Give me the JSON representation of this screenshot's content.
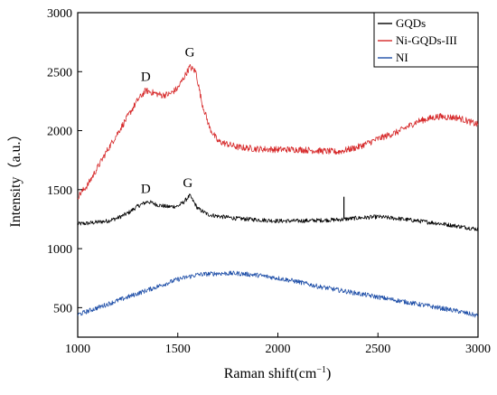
{
  "chart_data": {
    "type": "line",
    "xlabel": "Raman shift(cm",
    "xlabel_sup": "−1",
    "xlabel_suffix": ")",
    "ylabel": "Intensity（a.u.）",
    "xlim": [
      1000,
      3000
    ],
    "ylim": [
      250,
      3000
    ],
    "xticks": [
      1000,
      1500,
      2000,
      2500,
      3000
    ],
    "yticks": [
      500,
      1000,
      1500,
      2000,
      2500,
      3000
    ],
    "grid": false,
    "legend_position": "top-right",
    "series": [
      {
        "name": "GQDs",
        "color": "#000000",
        "points": [
          [
            1000,
            1210
          ],
          [
            1050,
            1215
          ],
          [
            1100,
            1225
          ],
          [
            1150,
            1235
          ],
          [
            1200,
            1260
          ],
          [
            1250,
            1300
          ],
          [
            1300,
            1360
          ],
          [
            1350,
            1400
          ],
          [
            1400,
            1370
          ],
          [
            1450,
            1355
          ],
          [
            1500,
            1360
          ],
          [
            1530,
            1395
          ],
          [
            1560,
            1450
          ],
          [
            1600,
            1340
          ],
          [
            1650,
            1290
          ],
          [
            1700,
            1275
          ],
          [
            1800,
            1255
          ],
          [
            1900,
            1245
          ],
          [
            2000,
            1235
          ],
          [
            2100,
            1235
          ],
          [
            2200,
            1240
          ],
          [
            2300,
            1245
          ],
          [
            2400,
            1260
          ],
          [
            2500,
            1270
          ],
          [
            2600,
            1255
          ],
          [
            2700,
            1235
          ],
          [
            2800,
            1215
          ],
          [
            2900,
            1190
          ],
          [
            3000,
            1165
          ]
        ]
      },
      {
        "name": "Ni-GQDs-III",
        "color": "#d62728",
        "points": [
          [
            1000,
            1440
          ],
          [
            1050,
            1540
          ],
          [
            1100,
            1690
          ],
          [
            1150,
            1840
          ],
          [
            1200,
            1980
          ],
          [
            1250,
            2120
          ],
          [
            1300,
            2260
          ],
          [
            1340,
            2340
          ],
          [
            1380,
            2320
          ],
          [
            1420,
            2300
          ],
          [
            1460,
            2310
          ],
          [
            1500,
            2360
          ],
          [
            1530,
            2450
          ],
          [
            1560,
            2540
          ],
          [
            1590,
            2500
          ],
          [
            1620,
            2240
          ],
          [
            1660,
            2020
          ],
          [
            1700,
            1910
          ],
          [
            1800,
            1860
          ],
          [
            1900,
            1845
          ],
          [
            2000,
            1840
          ],
          [
            2100,
            1840
          ],
          [
            2200,
            1830
          ],
          [
            2300,
            1820
          ],
          [
            2400,
            1860
          ],
          [
            2500,
            1930
          ],
          [
            2600,
            1990
          ],
          [
            2700,
            2080
          ],
          [
            2800,
            2120
          ],
          [
            2900,
            2110
          ],
          [
            3000,
            2050
          ]
        ]
      },
      {
        "name": "NI",
        "color": "#1f4fa8",
        "points": [
          [
            1000,
            440
          ],
          [
            1100,
            500
          ],
          [
            1200,
            560
          ],
          [
            1300,
            620
          ],
          [
            1400,
            680
          ],
          [
            1500,
            740
          ],
          [
            1600,
            780
          ],
          [
            1700,
            790
          ],
          [
            1800,
            790
          ],
          [
            1900,
            775
          ],
          [
            2000,
            750
          ],
          [
            2100,
            720
          ],
          [
            2200,
            680
          ],
          [
            2300,
            650
          ],
          [
            2400,
            620
          ],
          [
            2500,
            590
          ],
          [
            2600,
            560
          ],
          [
            2700,
            530
          ],
          [
            2800,
            500
          ],
          [
            2900,
            470
          ],
          [
            3000,
            430
          ]
        ]
      }
    ],
    "spikes": [
      {
        "series": "GQDs",
        "x": 2330,
        "top": 1440
      },
      {
        "series": "NI",
        "x": 2330,
        "top": 630
      }
    ],
    "annotations": [
      {
        "text": "D",
        "x": 1340,
        "y": 2420
      },
      {
        "text": "G",
        "x": 1560,
        "y": 2630
      },
      {
        "text": "D",
        "x": 1340,
        "y": 1470
      },
      {
        "text": "G",
        "x": 1550,
        "y": 1520
      }
    ]
  }
}
